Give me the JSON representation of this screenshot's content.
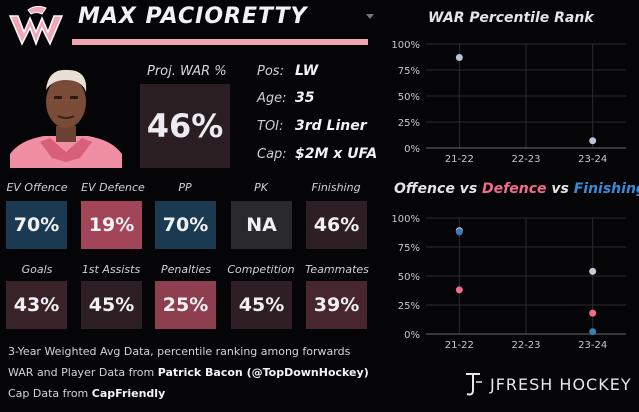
{
  "player": {
    "name": "MAX PACIORETTY",
    "proj_war_label": "Proj. WAR %",
    "proj_war_value": "46%"
  },
  "info": {
    "pos_label": "Pos:",
    "pos_value": "LW",
    "age_label": "Age:",
    "age_value": "35",
    "toi_label": "TOI:",
    "toi_value": "3rd Liner",
    "cap_label": "Cap:",
    "cap_value": "$2M x UFA"
  },
  "stats_row1": [
    {
      "label": "EV Offence",
      "value": "70%",
      "color": "#1b3a52"
    },
    {
      "label": "EV Defence",
      "value": "19%",
      "color": "#a24558"
    },
    {
      "label": "PP",
      "value": "70%",
      "color": "#1b3a52"
    },
    {
      "label": "PK",
      "value": "NA",
      "color": "#2a2a2c"
    },
    {
      "label": "Finishing",
      "value": "46%",
      "color": "#2e1f24"
    }
  ],
  "stats_row2": [
    {
      "label": "Goals",
      "value": "43%",
      "color": "#3a2229"
    },
    {
      "label": "1st Assists",
      "value": "45%",
      "color": "#2e1f24"
    },
    {
      "label": "Penalties",
      "value": "25%",
      "color": "#8e3f4f"
    },
    {
      "label": "Competition",
      "value": "45%",
      "color": "#2e1f24"
    },
    {
      "label": "Teammates",
      "value": "39%",
      "color": "#47262e"
    }
  ],
  "footer": {
    "line1": "3-Year Weighted Avg Data, percentile ranking among forwards",
    "line2_prefix": "WAR and Player Data from ",
    "line2_bold": "Patrick Bacon (@TopDownHockey)",
    "line3_prefix": "Cap Data from ",
    "line3_bold": "CapFriendly",
    "brand": "JFRESH HOCKEY"
  },
  "chart_titles": {
    "war": "WAR Percentile Rank",
    "ovd_part1": "Offence vs ",
    "ovd_part2": "Defence",
    "ovd_part3": " vs ",
    "ovd_part4": "Finishing"
  },
  "chart_data": [
    {
      "type": "scatter",
      "title": "WAR Percentile Rank",
      "categories": [
        "21-22",
        "22-23",
        "23-24"
      ],
      "yticks": [
        "0%",
        "25%",
        "50%",
        "75%",
        "100%"
      ],
      "ylim": [
        0,
        100
      ],
      "grid": true,
      "series": [
        {
          "color": "#b8c4d6",
          "values": [
            87,
            null,
            7
          ]
        }
      ]
    },
    {
      "type": "scatter",
      "title": "Offence vs Defence vs Finishing",
      "categories": [
        "21-22",
        "22-23",
        "23-24"
      ],
      "yticks": [
        "0%",
        "25%",
        "50%",
        "75%",
        "100%"
      ],
      "ylim": [
        0,
        100
      ],
      "grid": true,
      "series": [
        {
          "name": "Offence",
          "color": "#c8ccdc",
          "values": [
            89,
            null,
            54
          ]
        },
        {
          "name": "Defence",
          "color": "#f06c8a",
          "values": [
            38,
            null,
            18
          ]
        },
        {
          "name": "Finishing",
          "color": "#3a7ab8",
          "values": [
            88,
            null,
            2
          ]
        }
      ]
    }
  ]
}
